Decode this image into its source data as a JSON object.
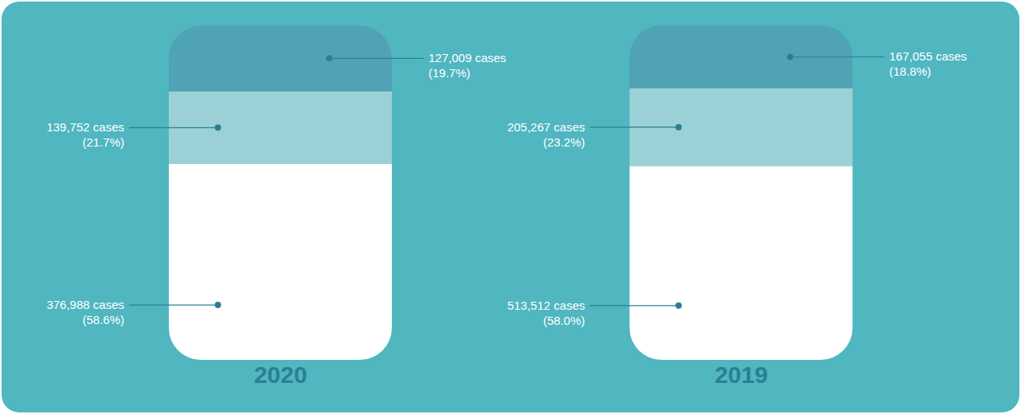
{
  "chart_data": {
    "type": "bar",
    "stacked": true,
    "categories": [
      "2020",
      "2019"
    ],
    "ylim": [
      0,
      100
    ],
    "tick_labels": "x",
    "data_labels": true,
    "series": [
      {
        "color": "#ffffff",
        "values": [
          58.6,
          58.0
        ],
        "value_labels": [
          "(58.6%)",
          "(58.0%)"
        ],
        "cases_labels": [
          "376,988 cases",
          "513,512 cases"
        ]
      },
      {
        "color": "#9bd1d6",
        "values": [
          21.7,
          23.2
        ],
        "value_labels": [
          "(21.7%)",
          "(23.2%)"
        ],
        "cases_labels": [
          "139,752 cases",
          "205,267 cases"
        ]
      },
      {
        "color": "#4fa3b5",
        "values": [
          19.7,
          18.8
        ],
        "value_labels": [
          "(19.7%)",
          "(18.8%)"
        ],
        "cases_labels": [
          "127,009 cases",
          "167,055 cases"
        ]
      }
    ]
  }
}
